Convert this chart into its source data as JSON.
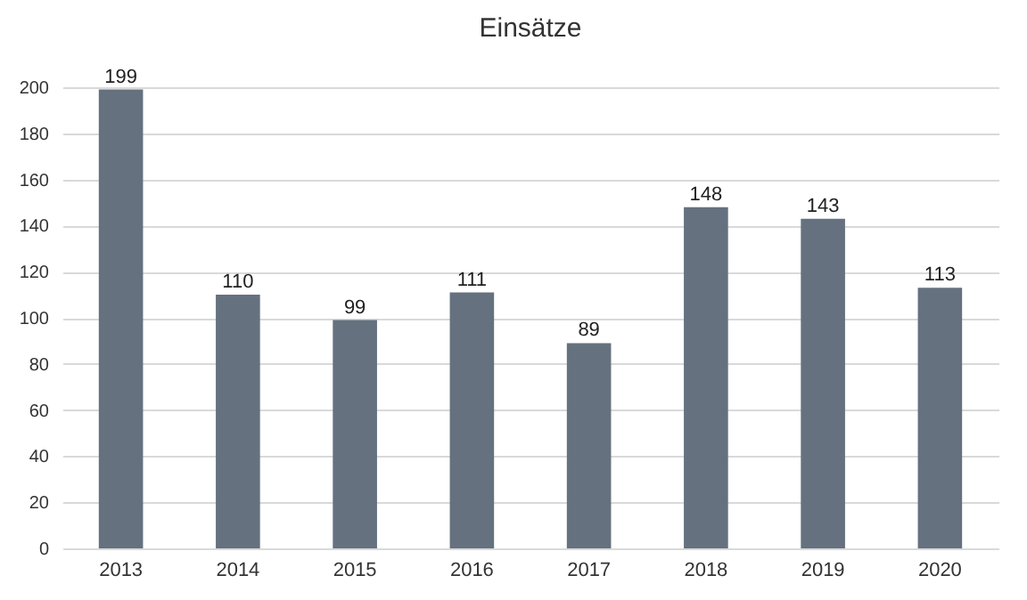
{
  "chart_data": {
    "type": "bar",
    "title": "Einsätze",
    "categories": [
      "2013",
      "2014",
      "2015",
      "2016",
      "2017",
      "2018",
      "2019",
      "2020"
    ],
    "values": [
      199,
      110,
      99,
      111,
      89,
      148,
      143,
      113
    ],
    "color": "#65717f",
    "ylim": [
      0,
      200
    ],
    "yticks": [
      0,
      20,
      40,
      60,
      80,
      100,
      120,
      140,
      160,
      180,
      200
    ],
    "grid": "y",
    "data_labels": true
  }
}
